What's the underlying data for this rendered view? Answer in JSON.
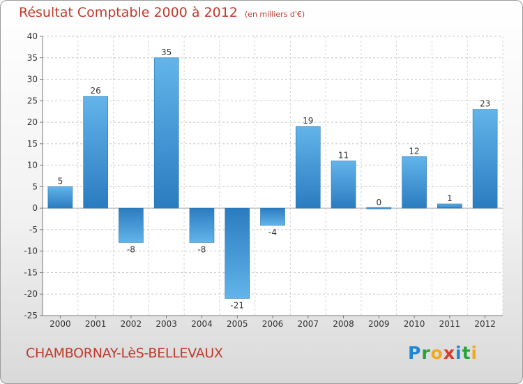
{
  "chart_data": {
    "type": "bar",
    "title": "Résultat Comptable 2000 à 2012",
    "subtitle": "(en milliers d'€)",
    "categories": [
      "2000",
      "2001",
      "2002",
      "2003",
      "2004",
      "2005",
      "2006",
      "2007",
      "2008",
      "2009",
      "2010",
      "2011",
      "2012"
    ],
    "values": [
      5,
      26,
      -8,
      35,
      -8,
      -21,
      -4,
      19,
      11,
      0,
      12,
      1,
      23
    ],
    "ylim": [
      -25,
      40
    ],
    "yticks": [
      -25,
      -20,
      -15,
      -10,
      -5,
      0,
      5,
      10,
      15,
      20,
      25,
      30,
      35,
      40
    ],
    "grid": true,
    "xlabel": "",
    "ylabel": ""
  },
  "footer": {
    "commune": "CHAMBORNAY-LèS-BELLEVAUX",
    "logo": "Proxiti"
  },
  "colors": {
    "bar_light": "#5eb0e8",
    "bar_dark": "#2a7cc0",
    "title": "#c0392b"
  }
}
